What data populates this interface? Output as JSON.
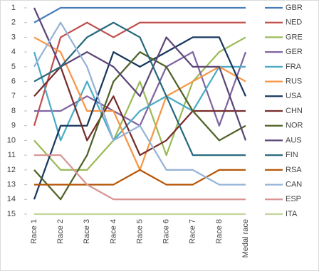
{
  "chart_data": {
    "type": "line",
    "categories": [
      "Race 1",
      "Race 2",
      "Race 3",
      "Race 4",
      "Race 5",
      "Race 6",
      "Race 7",
      "Race 8",
      "Medal race"
    ],
    "ylim": [
      1,
      15
    ],
    "y_reversed": true,
    "yticks": [
      1,
      2,
      3,
      4,
      5,
      6,
      7,
      8,
      9,
      10,
      11,
      12,
      13,
      14,
      15
    ],
    "legend": "right",
    "series": [
      {
        "name": "GBR",
        "color": "#4a7ebb",
        "values": [
          2,
          1,
          1,
          1,
          1,
          1,
          1,
          1,
          1
        ]
      },
      {
        "name": "NED",
        "color": "#c0504d",
        "values": [
          9,
          3,
          2,
          3,
          2,
          2,
          2,
          2,
          2
        ]
      },
      {
        "name": "GRE",
        "color": "#9bbb59",
        "values": [
          10,
          12,
          12,
          10,
          6,
          11,
          6,
          4,
          3
        ]
      },
      {
        "name": "GER",
        "color": "#8064a2",
        "values": [
          8,
          8,
          7,
          8,
          9,
          5,
          4,
          9,
          4
        ]
      },
      {
        "name": "FRA",
        "color": "#4bacc6",
        "values": [
          4,
          10,
          6,
          10,
          8,
          7,
          8,
          5,
          5
        ]
      },
      {
        "name": "RUS",
        "color": "#f79646",
        "values": [
          3,
          4,
          8,
          8,
          12,
          7,
          6,
          5,
          6
        ]
      },
      {
        "name": "USA",
        "color": "#17375e",
        "values": [
          14,
          9,
          9,
          4,
          5,
          4,
          3,
          3,
          7
        ]
      },
      {
        "name": "CHN",
        "color": "#772c2a",
        "values": [
          7,
          5,
          10,
          7,
          11,
          10,
          8,
          8,
          8
        ]
      },
      {
        "name": "NOR",
        "color": "#4f6228",
        "values": [
          12,
          14,
          11,
          6,
          4,
          5,
          8,
          10,
          9
        ]
      },
      {
        "name": "AUS",
        "color": "#5c4776",
        "values": [
          1,
          5,
          4,
          5,
          7,
          3,
          5,
          5,
          10
        ]
      },
      {
        "name": "FIN",
        "color": "#276a7c",
        "values": [
          6,
          5,
          3,
          2,
          3,
          7,
          11,
          11,
          11
        ]
      },
      {
        "name": "RSA",
        "color": "#b65708",
        "values": [
          13,
          13,
          13,
          13,
          12,
          13,
          13,
          12,
          12
        ]
      },
      {
        "name": "CAN",
        "color": "#95b3d7",
        "values": [
          5,
          2,
          5,
          10,
          9,
          12,
          12,
          13,
          13
        ]
      },
      {
        "name": "ESP",
        "color": "#d99694",
        "values": [
          11,
          11,
          13,
          14,
          14,
          14,
          14,
          14,
          14
        ]
      },
      {
        "name": "ITA",
        "color": "#c3d69b",
        "values": [
          15,
          15,
          15,
          15,
          15,
          15,
          15,
          15,
          15
        ]
      }
    ]
  }
}
